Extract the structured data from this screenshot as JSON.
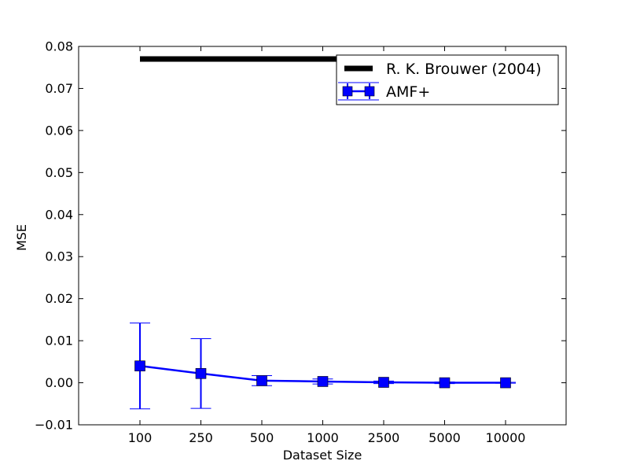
{
  "chart_data": {
    "type": "line",
    "xlabel": "Dataset Size",
    "ylabel": "MSE",
    "categories": [
      "100",
      "250",
      "500",
      "1000",
      "2500",
      "5000",
      "10000"
    ],
    "ylim": [
      -0.01,
      0.08
    ],
    "yticks": [
      "−0.01",
      "0.00",
      "0.01",
      "0.02",
      "0.03",
      "0.04",
      "0.05",
      "0.06",
      "0.07",
      "0.08"
    ],
    "yticks_values": [
      -0.01,
      0.0,
      0.01,
      0.02,
      0.03,
      0.04,
      0.05,
      0.06,
      0.07,
      0.08
    ],
    "grid": false,
    "legend_position": "top-right",
    "series": [
      {
        "name": "R. K. Brouwer (2004)",
        "kind": "reference-line",
        "color": "#000000",
        "values": [
          0.077,
          0.077,
          0.077,
          0.077,
          0.077,
          0.077,
          0.077
        ]
      },
      {
        "name": "AMF+",
        "kind": "line-errorbar",
        "color": "#0000ff",
        "values": [
          0.004,
          0.0022,
          0.0005,
          0.0003,
          0.0001,
          0.0,
          0.0
        ],
        "errors": [
          0.0102,
          0.0083,
          0.0012,
          0.0006,
          0.0003,
          0.0002,
          0.0001
        ]
      }
    ]
  }
}
